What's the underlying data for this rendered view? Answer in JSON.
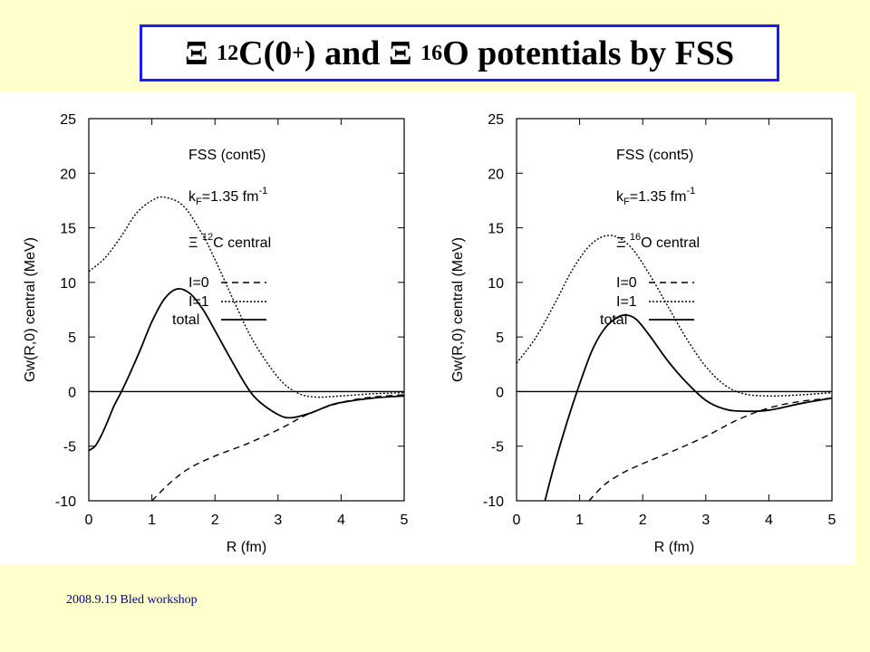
{
  "title": {
    "xi1": "Ξ",
    "mass1": "12",
    "nucleus1": "C(0",
    "plus": "+",
    "mid": ") and ",
    "xi2": "Ξ",
    "mass2": "16",
    "rest": "O potentials by FSS"
  },
  "footer": "2008.9.19 Bled workshop",
  "chart_data": [
    {
      "type": "line",
      "xlabel": "R (fm)",
      "ylabel": "Gw(R,0) central (MeV)",
      "xlim": [
        0,
        5
      ],
      "ylim": [
        -10,
        25
      ],
      "xticks": [
        "0",
        "1",
        "2",
        "3",
        "4",
        "5"
      ],
      "yticks": [
        "-10",
        "-5",
        "0",
        "5",
        "10",
        "15",
        "20",
        "25"
      ],
      "zero_line": true,
      "annotations": {
        "model": "FSS (cont5)",
        "kf_prefix": "k",
        "kf_sub": "F",
        "kf_value": "=1.35 fm",
        "kf_exp": "-1",
        "system_xi": "Ξ",
        "system_mass": "12",
        "system_nucleus": "C",
        "system_suffix": "central"
      },
      "legend_position": "right",
      "series": [
        {
          "name": "I=0",
          "style": "dashed",
          "x": [
            1.0,
            1.3,
            1.6,
            2.0,
            2.5,
            3.0,
            3.5,
            4.0,
            4.5,
            5.0
          ],
          "y": [
            -10.0,
            -8.3,
            -7.0,
            -5.9,
            -4.8,
            -3.5,
            -2.0,
            -1.0,
            -0.5,
            -0.3
          ]
        },
        {
          "name": "I=1",
          "style": "dotted",
          "x": [
            0,
            0.25,
            0.5,
            0.75,
            1.0,
            1.2,
            1.5,
            1.8,
            2.0,
            2.3,
            2.6,
            3.0,
            3.3,
            3.6,
            4.0,
            4.5,
            5.0
          ],
          "y": [
            11.0,
            12.2,
            14.1,
            16.3,
            17.5,
            17.8,
            17.0,
            14.4,
            12.1,
            8.3,
            4.7,
            1.3,
            -0.1,
            -0.5,
            -0.4,
            -0.2,
            -0.1
          ]
        },
        {
          "name": "total",
          "style": "solid",
          "x": [
            0,
            0.1,
            0.2,
            0.3,
            0.4,
            0.5,
            0.6,
            0.8,
            1.0,
            1.2,
            1.4,
            1.6,
            1.8,
            2.0,
            2.2,
            2.5,
            2.7,
            3.0,
            3.2,
            3.5,
            3.8,
            4.0,
            4.5,
            5.0
          ],
          "y": [
            -5.4,
            -5.0,
            -4.0,
            -2.7,
            -1.3,
            -0.2,
            1.0,
            3.6,
            6.4,
            8.5,
            9.4,
            9.0,
            7.6,
            5.6,
            3.5,
            0.5,
            -0.9,
            -2.1,
            -2.4,
            -2.0,
            -1.3,
            -1.0,
            -0.6,
            -0.4
          ]
        }
      ]
    },
    {
      "type": "line",
      "xlabel": "R (fm)",
      "ylabel": "Gw(R,0) central (MeV)",
      "xlim": [
        0,
        5
      ],
      "ylim": [
        -10,
        25
      ],
      "xticks": [
        "0",
        "1",
        "2",
        "3",
        "4",
        "5"
      ],
      "yticks": [
        "-10",
        "-5",
        "0",
        "5",
        "10",
        "15",
        "20",
        "25"
      ],
      "zero_line": true,
      "annotations": {
        "model": "FSS (cont5)",
        "kf_prefix": "k",
        "kf_sub": "F",
        "kf_value": "=1.35 fm",
        "kf_exp": "-1",
        "system_xi": "Ξ",
        "system_mass": "16",
        "system_nucleus": "O",
        "system_suffix": "central"
      },
      "legend_position": "right",
      "series": [
        {
          "name": "I=0",
          "style": "dashed",
          "x": [
            1.15,
            1.4,
            1.7,
            2.0,
            2.5,
            3.0,
            3.5,
            4.0,
            4.5,
            5.0
          ],
          "y": [
            -10.0,
            -8.5,
            -7.4,
            -6.6,
            -5.4,
            -4.1,
            -2.6,
            -1.5,
            -0.9,
            -0.6
          ]
        },
        {
          "name": "I=1",
          "style": "dotted",
          "x": [
            0,
            0.3,
            0.6,
            0.9,
            1.2,
            1.5,
            1.8,
            2.1,
            2.4,
            2.7,
            3.0,
            3.3,
            3.6,
            4.0,
            4.5,
            5.0
          ],
          "y": [
            2.6,
            4.9,
            8.0,
            11.3,
            13.6,
            14.3,
            13.3,
            10.8,
            7.8,
            4.8,
            2.3,
            0.6,
            -0.2,
            -0.4,
            -0.3,
            -0.1
          ]
        },
        {
          "name": "total",
          "style": "solid",
          "x": [
            0.45,
            0.6,
            0.8,
            1.0,
            1.2,
            1.4,
            1.6,
            1.75,
            1.9,
            2.1,
            2.4,
            2.7,
            3.0,
            3.3,
            3.6,
            4.0,
            4.5,
            5.0
          ],
          "y": [
            -10.0,
            -6.7,
            -2.8,
            0.7,
            3.8,
            5.8,
            6.8,
            7.0,
            6.6,
            5.2,
            2.8,
            0.8,
            -0.8,
            -1.6,
            -1.8,
            -1.7,
            -1.1,
            -0.6
          ]
        }
      ]
    }
  ]
}
